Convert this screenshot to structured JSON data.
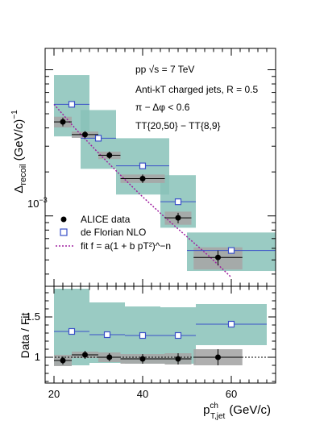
{
  "chart_data": {
    "type": "scatter",
    "upper_panel": {
      "ylabel_main": "Δ",
      "ylabel_sub": "recoil",
      "ylabel_unit": "(GeV/c)",
      "ylabel_exp": "−1",
      "yscale": "log",
      "ylim": [
        0.00033,
        0.014
      ],
      "y_tick_label": "10",
      "y_tick_exp": "−3",
      "annotations": [
        "pp √s = 7 TeV",
        "Anti-kT charged jets, R = 0.5",
        "π − Δφ < 0.6",
        "TT{20,50} − TT{8,9}"
      ],
      "series": [
        {
          "name": "ALICE data",
          "marker": "filled-circle",
          "color": "#000000",
          "x": [
            22,
            27,
            32.5,
            40,
            48,
            57
          ],
          "xerr": [
            2,
            3,
            2.5,
            5,
            3,
            5.5
          ],
          "y": [
            0.0044,
            0.0036,
            0.0026,
            0.0018,
            0.00097,
            0.00052
          ],
          "yerr": [
            0.0003,
            0.0002,
            0.00015,
            0.00012,
            8e-05,
            6e-05
          ],
          "syst_y": [
            0.00037,
            0.00018,
            0.00015,
            0.00012,
            0.0001,
            9e-05
          ],
          "syst_color": "#a6a6a6"
        },
        {
          "name": "de Florian NLO",
          "marker": "open-square",
          "color": "#3a50c8",
          "x": [
            24,
            30,
            40,
            48,
            60
          ],
          "xerr": [
            4,
            4,
            6,
            4,
            10
          ],
          "y": [
            0.0058,
            0.0034,
            0.0022,
            0.00125,
            0.00058
          ],
          "y_band_low": [
            0.0035,
            0.0021,
            0.0014,
            0.00083,
            0.00042
          ],
          "y_band_high": [
            0.0092,
            0.0053,
            0.0034,
            0.0019,
            0.00077
          ],
          "band_color": "#88c2b9"
        },
        {
          "name": "fit f = a(1 + b pT²)^−n",
          "line_style": "dotted",
          "color": "#a020a0",
          "fit_points": [
            [
              20,
              0.0058
            ],
            [
              25,
              0.0039
            ],
            [
              30,
              0.0027
            ],
            [
              35,
              0.0019
            ],
            [
              40,
              0.00135
            ],
            [
              45,
              0.00098
            ],
            [
              50,
              0.00072
            ],
            [
              55,
              0.00053
            ],
            [
              60,
              0.00038
            ]
          ]
        }
      ]
    },
    "lower_panel": {
      "ylabel": "Data / Fit",
      "ylim": [
        0.68,
        1.88
      ],
      "yticks": [
        1,
        1.5
      ],
      "ytick_labels": [
        "1",
        "1.5"
      ],
      "reference_line": 1,
      "data_ratio": {
        "x": [
          22,
          27,
          32.5,
          40,
          48,
          57
        ],
        "xerr": [
          2,
          3,
          2.5,
          5,
          3,
          5.5
        ],
        "y": [
          0.96,
          1.03,
          1.0,
          0.98,
          0.98,
          1.0
        ],
        "yerr": [
          0.05,
          0.05,
          0.05,
          0.06,
          0.07,
          0.1
        ],
        "syst": [
          0.07,
          0.04,
          0.06,
          0.06,
          0.07,
          0.1
        ]
      },
      "nlo_ratio": {
        "x": [
          24,
          32,
          40,
          48,
          60
        ],
        "xerr": [
          4,
          4,
          4,
          4,
          8
        ],
        "y": [
          1.32,
          1.28,
          1.27,
          1.27,
          1.41
        ],
        "yerr": [
          0.03,
          0.03,
          0.03,
          0.03,
          0.04
        ],
        "band_low": [
          0.9,
          0.93,
          0.92,
          0.92,
          1.15
        ],
        "band_high": [
          1.85,
          1.68,
          1.63,
          1.62,
          1.66
        ]
      }
    },
    "xlabel_main": "p",
    "xlabel_sup": "ch",
    "xlabel_sub": "T,jet",
    "xlabel_unit": "(GeV/c)",
    "xlim": [
      18,
      70
    ],
    "xticks": [
      20,
      40,
      60
    ],
    "xtick_labels": [
      "20",
      "40",
      "60"
    ],
    "legend": {
      "placement": "bottom-left",
      "entries": [
        "ALICE data",
        "de Florian NLO",
        "fit f = a(1 + b pT²)^−n"
      ]
    }
  }
}
